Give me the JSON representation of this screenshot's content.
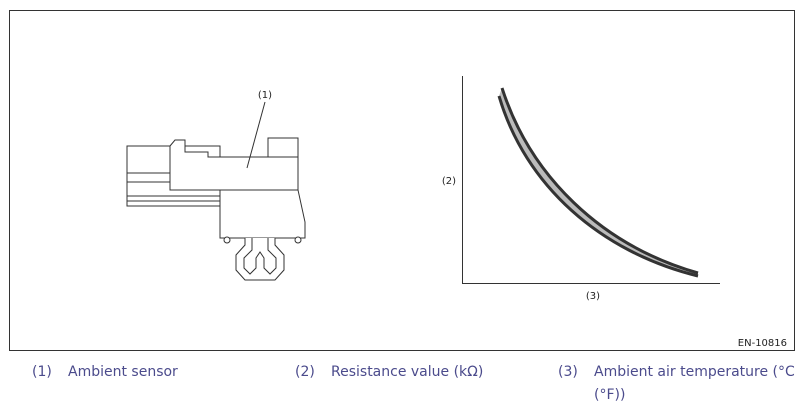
{
  "figure": {
    "callouts": [
      "(1)",
      "(2)",
      "(3)"
    ],
    "code": "EN-10816"
  },
  "legend": [
    {
      "number": "(1)",
      "text": "Ambient sensor"
    },
    {
      "number": "(2)",
      "text": "Resistance value (kΩ)"
    },
    {
      "number": "(3)",
      "text": "Ambient air temperature (°C (°F))"
    }
  ]
}
